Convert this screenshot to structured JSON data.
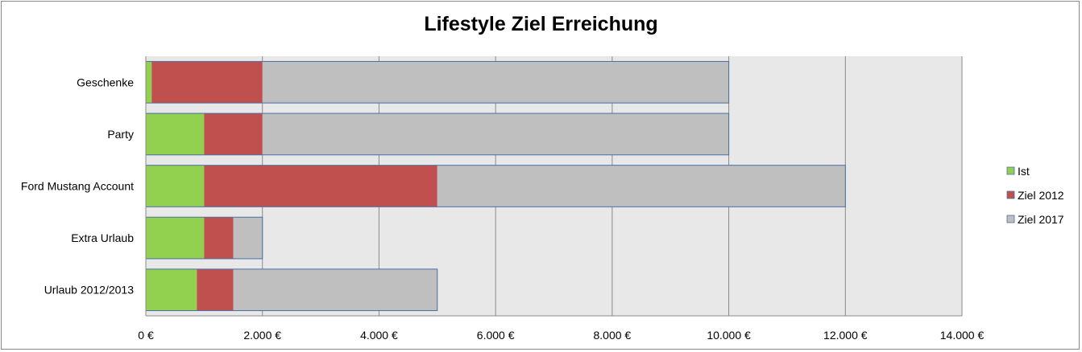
{
  "chart_data": {
    "type": "bar",
    "orientation": "horizontal",
    "stacked": true,
    "title": "Lifestyle Ziel Erreichung",
    "categories": [
      "Geschenke",
      "Party",
      "Ford Mustang Account",
      "Extra Urlaub",
      "Urlaub 2012/2013"
    ],
    "series": [
      {
        "name": "Ist",
        "color": "#92d050",
        "values": [
          100,
          1000,
          1000,
          1000,
          875
        ]
      },
      {
        "name": "Ziel 2012",
        "color": "#c0504d",
        "values": [
          1900,
          1000,
          4000,
          500,
          625
        ]
      },
      {
        "name": "Ziel 2017",
        "color": "#bfbfbf",
        "values": [
          8000,
          8000,
          7000,
          500,
          3500
        ]
      }
    ],
    "xlim": [
      0,
      14000
    ],
    "xticks": [
      0,
      2000,
      4000,
      6000,
      8000,
      10000,
      12000,
      14000
    ],
    "xtick_labels": [
      "0 €",
      "2.000 €",
      "4.000 €",
      "6.000 €",
      "8.000 €",
      "10.000 €",
      "12.000 €",
      "14.000 €"
    ],
    "grid": true,
    "legend_position": "right"
  }
}
